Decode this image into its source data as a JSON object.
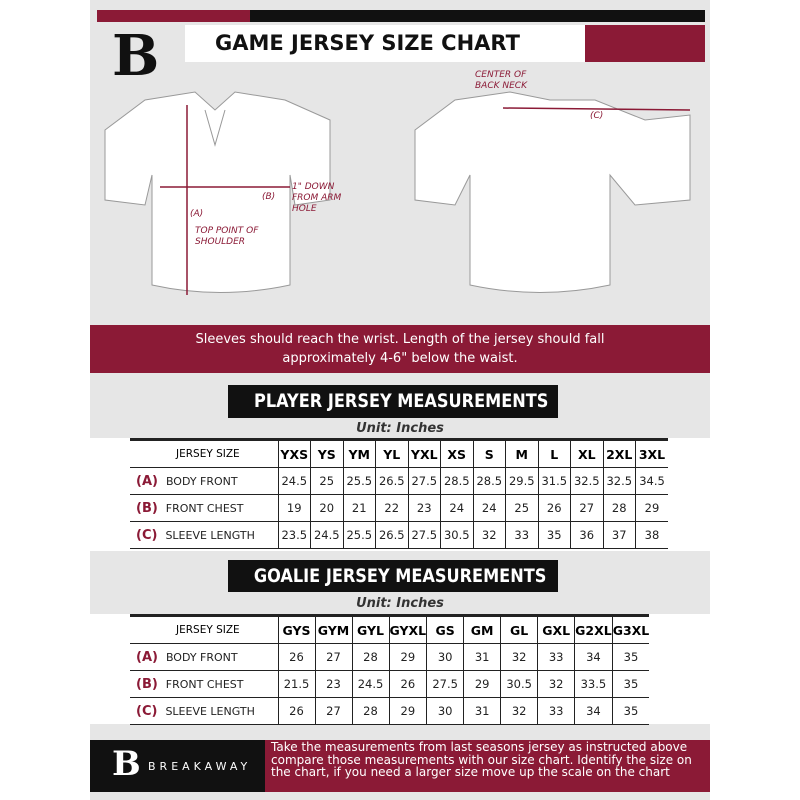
{
  "header": {
    "title": "GAME JERSEY SIZE CHART",
    "logo_letter": "B"
  },
  "diagram": {
    "label_a": "(A)",
    "label_a_text": "TOP POINT OF SHOULDER",
    "label_b": "(B)",
    "label_b_text": "1\" DOWN FROM ARM HOLE",
    "label_c": "(C)",
    "label_c_text": "CENTER OF BACK NECK"
  },
  "banner": "Sleeves should reach the wrist. Length of the jersey should fall approximately 4-6\" below the waist.",
  "player": {
    "heading": "PLAYER JERSEY MEASUREMENTS",
    "unit": "Unit: Inches",
    "size_label": "JERSEY SIZE",
    "sizes": [
      "YXS",
      "YS",
      "YM",
      "YL",
      "YXL",
      "XS",
      "S",
      "M",
      "L",
      "XL",
      "2XL",
      "3XL"
    ],
    "rows": [
      {
        "letter": "(A)",
        "label": "BODY FRONT",
        "values": [
          "24.5",
          "25",
          "25.5",
          "26.5",
          "27.5",
          "28.5",
          "28.5",
          "29.5",
          "31.5",
          "32.5",
          "32.5",
          "34.5"
        ]
      },
      {
        "letter": "(B)",
        "label": "FRONT CHEST",
        "values": [
          "19",
          "20",
          "21",
          "22",
          "23",
          "24",
          "24",
          "25",
          "26",
          "27",
          "28",
          "29"
        ]
      },
      {
        "letter": "(C)",
        "label": "SLEEVE LENGTH",
        "values": [
          "23.5",
          "24.5",
          "25.5",
          "26.5",
          "27.5",
          "30.5",
          "32",
          "33",
          "35",
          "36",
          "37",
          "38"
        ]
      }
    ]
  },
  "goalie": {
    "heading": "GOALIE JERSEY MEASUREMENTS",
    "unit": "Unit: Inches",
    "size_label": "JERSEY SIZE",
    "sizes": [
      "GYS",
      "GYM",
      "GYL",
      "GYXL",
      "GS",
      "GM",
      "GL",
      "GXL",
      "G2XL",
      "G3XL"
    ],
    "rows": [
      {
        "letter": "(A)",
        "label": "BODY FRONT",
        "values": [
          "26",
          "27",
          "28",
          "29",
          "30",
          "31",
          "32",
          "33",
          "34",
          "35"
        ]
      },
      {
        "letter": "(B)",
        "label": "FRONT CHEST",
        "values": [
          "21.5",
          "23",
          "24.5",
          "26",
          "27.5",
          "29",
          "30.5",
          "32",
          "33.5",
          "35"
        ]
      },
      {
        "letter": "(C)",
        "label": "SLEEVE LENGTH",
        "values": [
          "26",
          "27",
          "28",
          "29",
          "30",
          "31",
          "32",
          "33",
          "34",
          "35"
        ]
      }
    ]
  },
  "footer": {
    "brand": "BREAKAWAY",
    "logo_letter": "B",
    "note": "Take the measurements from last seasons jersey as instructed above compare those measurements  with our size chart. Identify the size on the chart, if you need a larger size move up the scale on the chart"
  },
  "colors": {
    "accent": "#8b1a36",
    "dark": "#111111",
    "background": "#e6e6e6"
  }
}
